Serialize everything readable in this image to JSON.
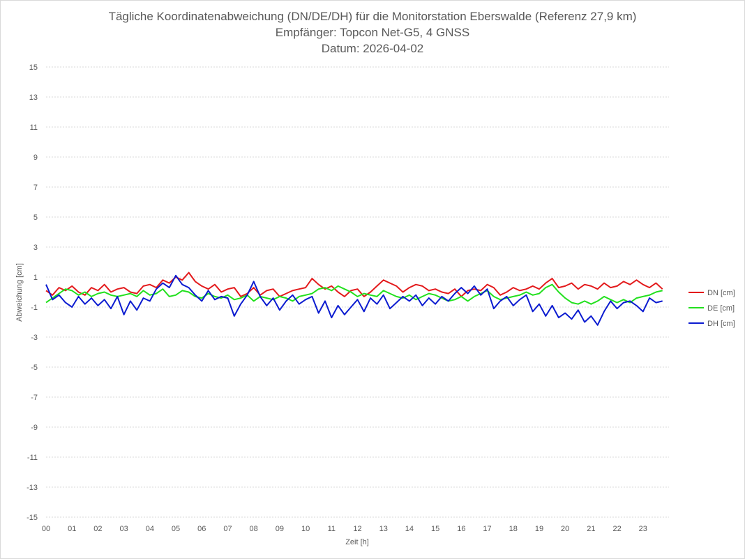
{
  "chart_data": {
    "type": "line",
    "title": [
      "Tägliche Koordinatenabweichung (DN/DE/DH) für die Monitorstation Eberswalde (Referenz 27,9 km)",
      "Empfänger: Topcon Net-G5, 4 GNSS",
      "Datum: 2026-04-02"
    ],
    "xlabel": "Zeit [h]",
    "ylabel": "Abweichung [cm]",
    "xlim": [
      0,
      24
    ],
    "ylim": [
      -15,
      15
    ],
    "x_tick_labels": [
      "00",
      "01",
      "02",
      "03",
      "04",
      "05",
      "06",
      "07",
      "08",
      "09",
      "10",
      "11",
      "12",
      "13",
      "14",
      "15",
      "16",
      "17",
      "18",
      "19",
      "20",
      "21",
      "22",
      "23"
    ],
    "y_ticks": [
      15,
      13,
      11,
      9,
      7,
      5,
      3,
      1,
      -1,
      -3,
      -5,
      -7,
      -9,
      -11,
      -13,
      -15
    ],
    "grid": "horizontal-dotted",
    "legend_position": "right",
    "x": [
      0,
      0.25,
      0.5,
      0.75,
      1,
      1.25,
      1.5,
      1.75,
      2,
      2.25,
      2.5,
      2.75,
      3,
      3.25,
      3.5,
      3.75,
      4,
      4.25,
      4.5,
      4.75,
      5,
      5.25,
      5.5,
      5.75,
      6,
      6.25,
      6.5,
      6.75,
      7,
      7.25,
      7.5,
      7.75,
      8,
      8.25,
      8.5,
      8.75,
      9,
      9.25,
      9.5,
      9.75,
      10,
      10.25,
      10.5,
      10.75,
      11,
      11.25,
      11.5,
      11.75,
      12,
      12.25,
      12.5,
      12.75,
      13,
      13.25,
      13.5,
      13.75,
      14,
      14.25,
      14.5,
      14.75,
      15,
      15.25,
      15.5,
      15.75,
      16,
      16.25,
      16.5,
      16.75,
      17,
      17.25,
      17.5,
      17.75,
      18,
      18.25,
      18.5,
      18.75,
      19,
      19.25,
      19.5,
      19.75,
      20,
      20.25,
      20.5,
      20.75,
      21,
      21.25,
      21.5,
      21.75,
      22,
      22.25,
      22.5,
      22.75,
      23,
      23.25,
      23.5,
      23.75
    ],
    "series": [
      {
        "name": "DN [cm]",
        "color": "#e31a1c",
        "values": [
          0.1,
          -0.2,
          0.3,
          0.1,
          0.4,
          0.0,
          -0.2,
          0.3,
          0.1,
          0.5,
          0.0,
          0.2,
          0.3,
          0.0,
          -0.1,
          0.4,
          0.5,
          0.3,
          0.8,
          0.6,
          1.0,
          0.8,
          1.3,
          0.7,
          0.4,
          0.2,
          0.5,
          0.0,
          0.2,
          0.3,
          -0.3,
          -0.1,
          0.3,
          -0.2,
          0.1,
          0.2,
          -0.3,
          -0.1,
          0.1,
          0.2,
          0.3,
          0.9,
          0.5,
          0.2,
          0.4,
          0.0,
          -0.3,
          0.1,
          0.2,
          -0.3,
          0.0,
          0.4,
          0.8,
          0.6,
          0.4,
          0.0,
          0.3,
          0.5,
          0.4,
          0.1,
          0.2,
          0.0,
          -0.1,
          0.2,
          -0.3,
          0.1,
          0.2,
          0.1,
          0.5,
          0.3,
          -0.2,
          0.0,
          0.3,
          0.1,
          0.2,
          0.4,
          0.2,
          0.6,
          0.9,
          0.3,
          0.4,
          0.6,
          0.2,
          0.5,
          0.4,
          0.2,
          0.6,
          0.3,
          0.4,
          0.7,
          0.5,
          0.8,
          0.5,
          0.3,
          0.6,
          0.2
        ]
      },
      {
        "name": "DE [cm]",
        "color": "#22e01e",
        "values": [
          -0.7,
          -0.4,
          -0.1,
          0.2,
          0.1,
          -0.2,
          0.0,
          -0.3,
          -0.1,
          0.0,
          -0.2,
          -0.3,
          -0.2,
          -0.1,
          -0.3,
          0.1,
          -0.2,
          -0.1,
          0.2,
          -0.3,
          -0.2,
          0.1,
          0.0,
          -0.3,
          -0.4,
          -0.1,
          -0.3,
          -0.4,
          -0.2,
          -0.5,
          -0.4,
          -0.2,
          -0.6,
          -0.3,
          -0.4,
          -0.5,
          -0.3,
          -0.4,
          -0.6,
          -0.3,
          -0.2,
          -0.1,
          0.2,
          0.3,
          0.1,
          0.4,
          0.2,
          0.0,
          -0.3,
          -0.1,
          -0.2,
          -0.3,
          0.1,
          -0.1,
          -0.3,
          -0.4,
          -0.2,
          -0.5,
          -0.3,
          -0.1,
          -0.2,
          -0.4,
          -0.6,
          -0.5,
          -0.3,
          -0.6,
          -0.3,
          -0.1,
          0.1,
          -0.3,
          -0.5,
          -0.4,
          -0.3,
          -0.2,
          0.0,
          -0.2,
          -0.1,
          0.3,
          0.5,
          0.0,
          -0.4,
          -0.7,
          -0.8,
          -0.6,
          -0.8,
          -0.6,
          -0.3,
          -0.5,
          -0.7,
          -0.5,
          -0.7,
          -0.4,
          -0.3,
          -0.2,
          0.0,
          0.1
        ]
      },
      {
        "name": "DH [cm]",
        "color": "#0b1bd0",
        "values": [
          0.5,
          -0.5,
          -0.2,
          -0.7,
          -1.0,
          -0.3,
          -0.8,
          -0.4,
          -0.9,
          -0.5,
          -1.1,
          -0.3,
          -1.5,
          -0.6,
          -1.2,
          -0.4,
          -0.6,
          0.2,
          0.6,
          0.3,
          1.1,
          0.5,
          0.3,
          -0.2,
          -0.6,
          0.1,
          -0.5,
          -0.3,
          -0.4,
          -1.6,
          -0.8,
          -0.2,
          0.7,
          -0.3,
          -0.9,
          -0.4,
          -1.2,
          -0.6,
          -0.2,
          -0.8,
          -0.5,
          -0.3,
          -1.4,
          -0.6,
          -1.7,
          -0.9,
          -1.5,
          -1.0,
          -0.5,
          -1.3,
          -0.4,
          -0.8,
          -0.2,
          -1.1,
          -0.7,
          -0.3,
          -0.6,
          -0.2,
          -0.9,
          -0.4,
          -0.8,
          -0.3,
          -0.6,
          -0.1,
          0.3,
          -0.1,
          0.4,
          -0.2,
          0.2,
          -1.1,
          -0.6,
          -0.3,
          -0.9,
          -0.5,
          -0.2,
          -1.3,
          -0.8,
          -1.6,
          -0.9,
          -1.7,
          -1.4,
          -1.8,
          -1.2,
          -2.0,
          -1.6,
          -2.2,
          -1.3,
          -0.6,
          -1.1,
          -0.7,
          -0.6,
          -0.9,
          -1.3,
          -0.4,
          -0.7,
          -0.6
        ]
      }
    ]
  }
}
